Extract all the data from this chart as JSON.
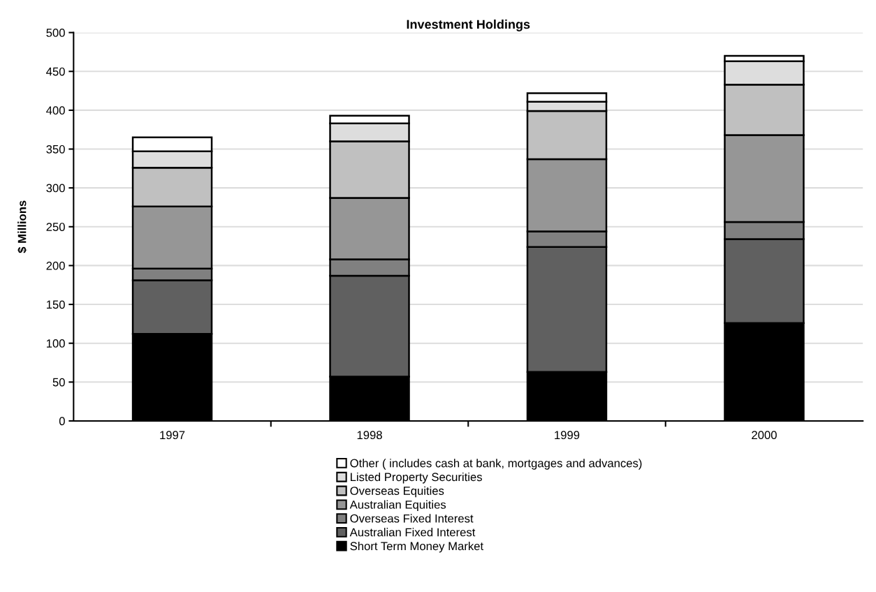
{
  "chart_data": {
    "type": "bar",
    "title": "Investment Holdings",
    "ylabel": "$ Millions",
    "categories": [
      "1997",
      "1998",
      "1999",
      "2000"
    ],
    "stacked": true,
    "series": [
      {
        "name": "Short Term Money Market",
        "color": "#000000",
        "values": [
          112,
          57,
          63,
          126
        ]
      },
      {
        "name": "Australian Fixed Interest",
        "color": "#606060",
        "values": [
          69,
          130,
          161,
          108
        ]
      },
      {
        "name": "Overseas Fixed Interest",
        "color": "#808080",
        "values": [
          15,
          21,
          20,
          22
        ]
      },
      {
        "name": "Australian Equities",
        "color": "#969696",
        "values": [
          80,
          79,
          93,
          112
        ]
      },
      {
        "name": "Overseas Equities",
        "color": "#c0c0c0",
        "values": [
          50,
          73,
          62,
          65
        ]
      },
      {
        "name": "Listed Property Securities",
        "color": "#dddddd",
        "values": [
          21,
          23,
          12,
          30
        ]
      },
      {
        "name": "Other ( includes cash at bank, mortgages and advances)",
        "color": "#ffffff",
        "values": [
          18,
          10,
          11,
          7
        ]
      }
    ],
    "ylim": [
      0,
      500
    ],
    "yticks": [
      0,
      50,
      100,
      150,
      200,
      250,
      300,
      350,
      400,
      450,
      500
    ],
    "grid": "y",
    "legend": "bottom"
  }
}
